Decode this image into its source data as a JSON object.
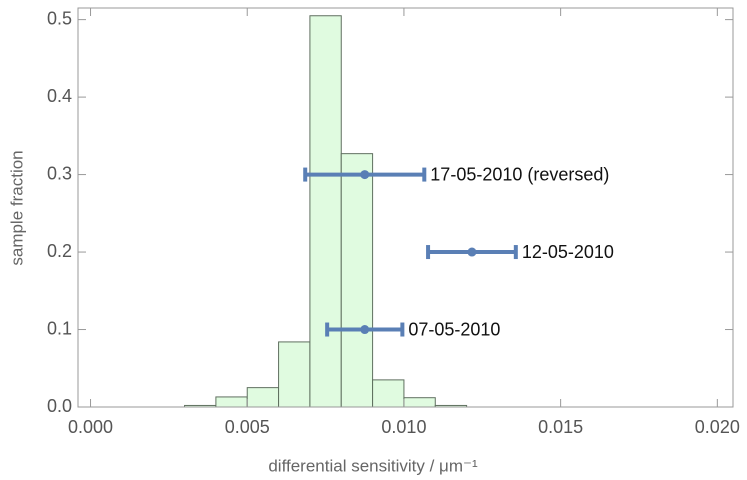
{
  "chart_data": {
    "type": "histogram",
    "bins": [
      0.003,
      0.004,
      0.005,
      0.006,
      0.007,
      0.008,
      0.009,
      0.01,
      0.011,
      0.012
    ],
    "values": [
      0.002,
      0.013,
      0.025,
      0.084,
      0.505,
      0.327,
      0.035,
      0.012,
      0.002
    ],
    "color": "#e0fbe0",
    "edge_color": "#5f6f5f",
    "x_label": "differential sensitivity / μm⁻¹",
    "y_label": "sample fraction",
    "xlim": [
      -0.0004,
      0.0205
    ],
    "ylim": [
      0,
      0.515
    ],
    "xticks": [
      {
        "value": 0,
        "label": "0.000"
      },
      {
        "value": 0.005,
        "label": "0.005"
      },
      {
        "value": 0.01,
        "label": "0.010"
      },
      {
        "value": 0.015,
        "label": "0.015"
      },
      {
        "value": 0.02,
        "label": "0.020"
      }
    ],
    "yticks": [
      {
        "value": 0,
        "label": "0.0"
      },
      0.1,
      0.2,
      0.3,
      0.4,
      0.5
    ],
    "points": {
      "color": "#5a7fb5",
      "items": [
        {
          "label": "17-05-2010 (reversed)",
          "x": 0.00875,
          "y": 0.3,
          "xerr": 0.0019
        },
        {
          "label": "12-05-2010",
          "x": 0.01217,
          "y": 0.2,
          "xerr": 0.0014
        },
        {
          "label": "07-05-2010",
          "x": 0.00875,
          "y": 0.1,
          "xerr": 0.0012
        }
      ]
    }
  }
}
